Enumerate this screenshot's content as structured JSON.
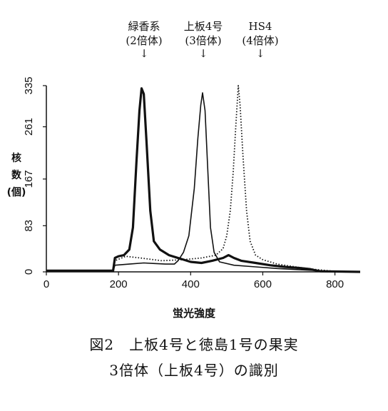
{
  "chart_data": {
    "type": "line",
    "xlabel": "蛍光強度",
    "ylabel_lines": [
      "核",
      "数",
      "(個)"
    ],
    "xlim": [
      0,
      870
    ],
    "ylim": [
      0,
      335
    ],
    "x_ticks": [
      "0",
      "200",
      "400",
      "600",
      "800"
    ],
    "y_ticks": [
      "0",
      "83",
      "167",
      "261",
      "335"
    ],
    "peak_annotations": [
      {
        "name": "緑香系",
        "ploidy": "(2倍体)",
        "x": 265
      },
      {
        "name": "上板4号",
        "ploidy": "(3倍体)",
        "x": 435
      },
      {
        "name": "HS4",
        "ploidy": "(4倍体)",
        "x": 535
      }
    ],
    "series": [
      {
        "style": "thick",
        "points": [
          [
            0,
            2
          ],
          [
            185,
            2
          ],
          [
            190,
            25
          ],
          [
            200,
            28
          ],
          [
            215,
            30
          ],
          [
            230,
            40
          ],
          [
            240,
            80
          ],
          [
            250,
            200
          ],
          [
            258,
            290
          ],
          [
            264,
            330
          ],
          [
            270,
            320
          ],
          [
            278,
            230
          ],
          [
            288,
            110
          ],
          [
            298,
            55
          ],
          [
            315,
            40
          ],
          [
            340,
            30
          ],
          [
            370,
            24
          ],
          [
            400,
            18
          ],
          [
            430,
            16
          ],
          [
            460,
            20
          ],
          [
            490,
            25
          ],
          [
            505,
            30
          ],
          [
            520,
            25
          ],
          [
            540,
            20
          ],
          [
            580,
            16
          ],
          [
            620,
            12
          ],
          [
            660,
            9
          ],
          [
            700,
            7
          ],
          [
            730,
            5
          ],
          [
            745,
            3
          ],
          [
            760,
            1
          ],
          [
            870,
            0
          ]
        ]
      },
      {
        "style": "thin",
        "points": [
          [
            185,
            2
          ],
          [
            190,
            12
          ],
          [
            230,
            14
          ],
          [
            270,
            16
          ],
          [
            300,
            15
          ],
          [
            330,
            14
          ],
          [
            355,
            14
          ],
          [
            365,
            20
          ],
          [
            380,
            35
          ],
          [
            395,
            65
          ],
          [
            410,
            150
          ],
          [
            420,
            240
          ],
          [
            428,
            300
          ],
          [
            433,
            322
          ],
          [
            440,
            290
          ],
          [
            447,
            190
          ],
          [
            455,
            80
          ],
          [
            465,
            35
          ],
          [
            480,
            18
          ],
          [
            520,
            12
          ],
          [
            580,
            9
          ],
          [
            640,
            6
          ],
          [
            700,
            4
          ],
          [
            760,
            2
          ],
          [
            800,
            1
          ],
          [
            870,
            0
          ]
        ]
      },
      {
        "style": "dotted",
        "points": [
          [
            185,
            2
          ],
          [
            190,
            20
          ],
          [
            220,
            28
          ],
          [
            260,
            25
          ],
          [
            320,
            20
          ],
          [
            380,
            22
          ],
          [
            430,
            25
          ],
          [
            470,
            30
          ],
          [
            490,
            42
          ],
          [
            500,
            65
          ],
          [
            510,
            110
          ],
          [
            518,
            180
          ],
          [
            525,
            260
          ],
          [
            532,
            335
          ],
          [
            537,
            300
          ],
          [
            545,
            210
          ],
          [
            555,
            110
          ],
          [
            565,
            55
          ],
          [
            580,
            30
          ],
          [
            600,
            22
          ],
          [
            640,
            14
          ],
          [
            700,
            8
          ],
          [
            750,
            4
          ],
          [
            800,
            1
          ],
          [
            870,
            0
          ]
        ]
      }
    ]
  },
  "caption": {
    "line1": "図2　上板4号と徳島1号の果実",
    "line2": "3倍体（上板4号）の識別"
  }
}
